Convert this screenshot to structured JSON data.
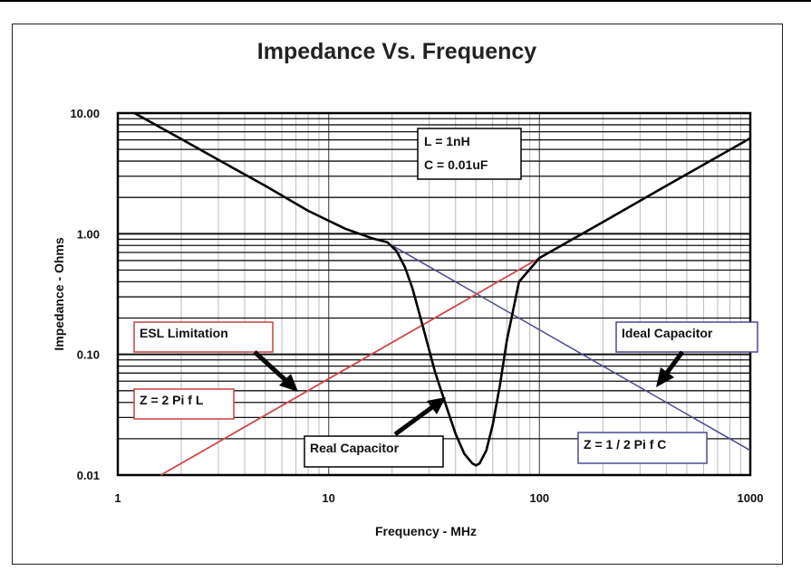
{
  "chart_data": {
    "type": "line",
    "title": "Impedance Vs. Frequency",
    "xlabel": "Frequency - MHz",
    "ylabel": "Impedance - Ohms",
    "x_scale": "log",
    "y_scale": "log",
    "xlim": [
      1,
      1000
    ],
    "ylim": [
      0.01,
      10
    ],
    "x_ticks": [
      "1",
      "10",
      "100",
      "1000"
    ],
    "y_ticks": [
      "10.00",
      "1.00",
      "0.10",
      "0.01"
    ],
    "grid": true,
    "colors": {
      "real": "#000000",
      "esl": "#d04848",
      "ideal": "#4a4a90"
    },
    "series": [
      {
        "x": [
          1.2,
          2,
          3,
          5,
          8,
          12,
          16,
          19,
          21,
          23,
          25,
          28,
          32,
          36,
          40,
          44,
          48,
          50,
          52,
          56,
          60,
          65,
          70,
          80,
          100,
          200,
          400,
          1000
        ],
        "values": [
          10,
          6.1,
          4.1,
          2.5,
          1.55,
          1.1,
          0.92,
          0.85,
          0.72,
          0.53,
          0.35,
          0.17,
          0.071,
          0.038,
          0.022,
          0.015,
          0.0125,
          0.012,
          0.0125,
          0.016,
          0.026,
          0.056,
          0.13,
          0.4,
          0.63,
          1.25,
          2.5,
          6.2
        ]
      },
      {
        "x": [
          1.6,
          100
        ],
        "values": [
          0.01,
          0.63
        ]
      },
      {
        "x": [
          20,
          1000
        ],
        "values": [
          0.8,
          0.016
        ]
      }
    ],
    "annotations": {
      "lc_line1": "L = 1nH",
      "lc_line2": "C = 0.01uF",
      "esl": "ESL Limitation",
      "esl_formula": "Z = 2 Pi f L",
      "real": "Real Capacitor",
      "ideal": "Ideal Capacitor",
      "ideal_formula": "Z = 1 / 2 Pi f C"
    }
  }
}
